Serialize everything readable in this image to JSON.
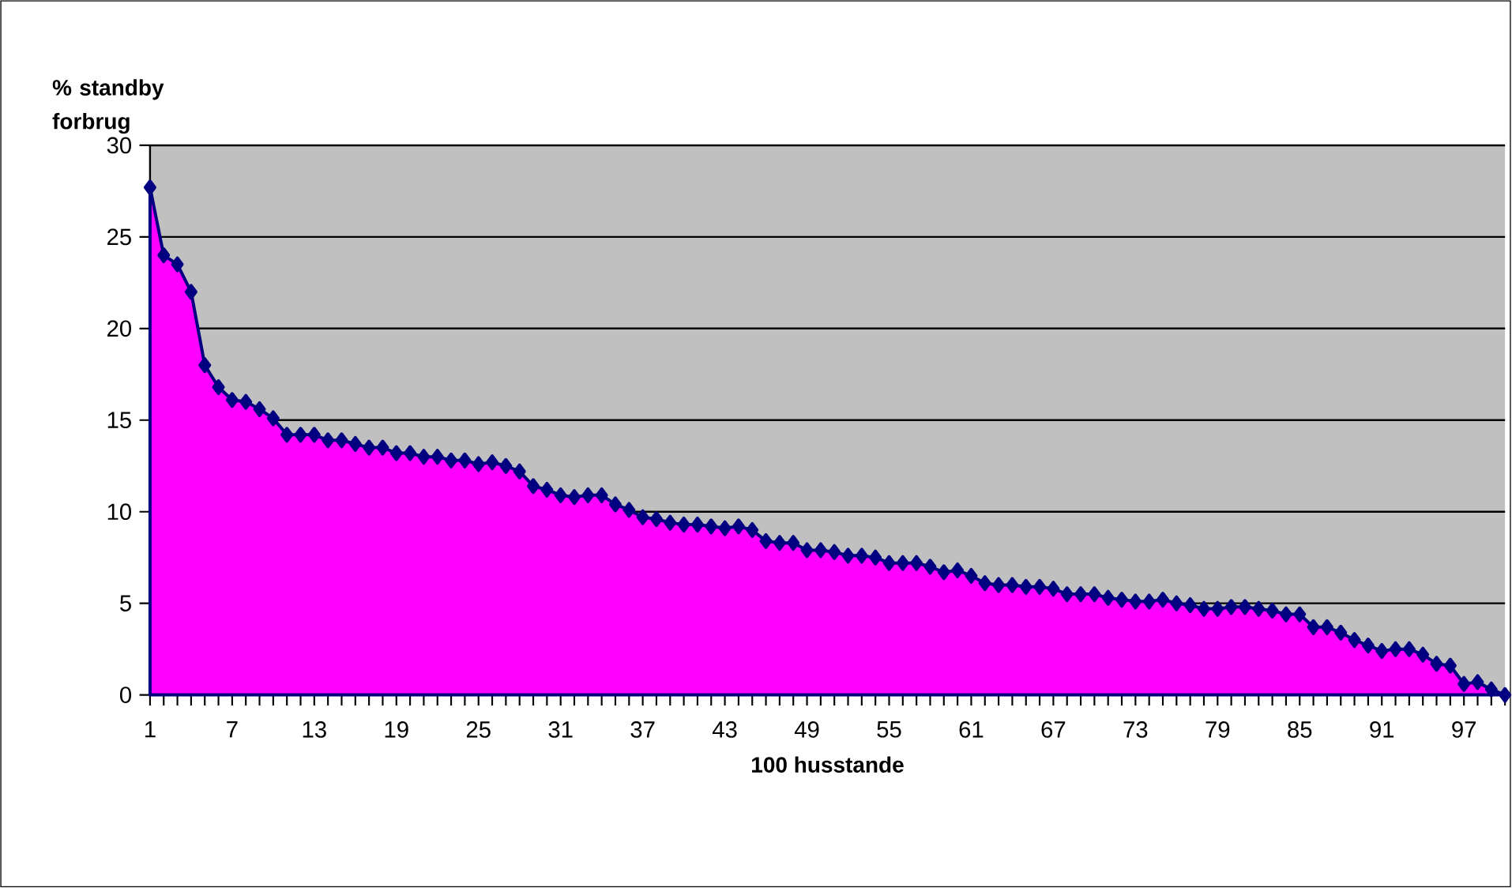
{
  "chart_data": {
    "type": "area",
    "ylabel": "% standby forbrug",
    "xlabel": "100 husstande",
    "categories": [
      "1",
      null,
      null,
      null,
      null,
      null,
      "7",
      null,
      null,
      null,
      null,
      null,
      "13",
      null,
      null,
      null,
      null,
      null,
      "19",
      null,
      null,
      null,
      null,
      null,
      "25",
      null,
      null,
      null,
      null,
      null,
      "31",
      null,
      null,
      null,
      null,
      null,
      "37",
      null,
      null,
      null,
      null,
      null,
      "43",
      null,
      null,
      null,
      null,
      null,
      "49",
      null,
      null,
      null,
      null,
      null,
      "55",
      null,
      null,
      null,
      null,
      null,
      "61",
      null,
      null,
      null,
      null,
      null,
      "67",
      null,
      null,
      null,
      null,
      null,
      "73",
      null,
      null,
      null,
      null,
      null,
      "79",
      null,
      null,
      null,
      null,
      null,
      "85",
      null,
      null,
      null,
      null,
      null,
      "91",
      null,
      null,
      null,
      null,
      null,
      "97",
      null,
      null,
      null
    ],
    "series": [
      {
        "color": "#ff00ff",
        "values": [
          27.7,
          24.0,
          23.5,
          22.0,
          18.0,
          16.8,
          16.1,
          16.0,
          15.6,
          15.1,
          14.2,
          14.2,
          14.2,
          13.9,
          13.9,
          13.7,
          13.5,
          13.5,
          13.2,
          13.2,
          13.0,
          13.0,
          12.8,
          12.8,
          12.6,
          12.7,
          12.5,
          12.2,
          11.4,
          11.2,
          10.9,
          10.8,
          10.9,
          10.9,
          10.4,
          10.1,
          9.7,
          9.6,
          9.4,
          9.3,
          9.3,
          9.2,
          9.1,
          9.2,
          9.0,
          8.4,
          8.3,
          8.3,
          7.9,
          7.9,
          7.8,
          7.6,
          7.6,
          7.5,
          7.2,
          7.2,
          7.2,
          7.0,
          6.7,
          6.8,
          6.5,
          6.1,
          6.0,
          6.0,
          5.9,
          5.9,
          5.8,
          5.5,
          5.5,
          5.5,
          5.3,
          5.2,
          5.1,
          5.1,
          5.2,
          5.0,
          4.9,
          4.7,
          4.7,
          4.8,
          4.8,
          4.7,
          4.6,
          4.4,
          4.4,
          3.7,
          3.7,
          3.4,
          3.0,
          2.7,
          2.4,
          2.5,
          2.5,
          2.2,
          1.7,
          1.6,
          0.6,
          0.7,
          0.3,
          0.0
        ]
      }
    ],
    "ylim": [
      0,
      30
    ],
    "yticks": [
      0,
      5,
      10,
      15,
      20,
      25,
      30
    ],
    "grid": "y",
    "marker": "diamond"
  }
}
